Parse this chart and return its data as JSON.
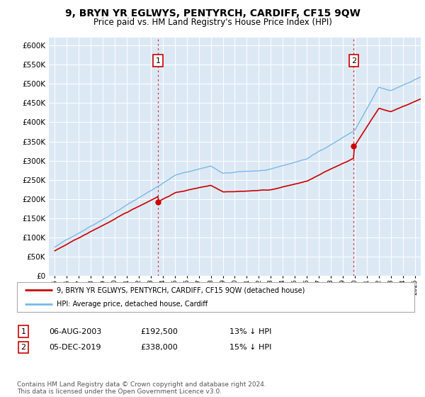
{
  "title": "9, BRYN YR EGLWYS, PENTYRCH, CARDIFF, CF15 9QW",
  "subtitle": "Price paid vs. HM Land Registry's House Price Index (HPI)",
  "background_color": "#dce9f5",
  "plot_bg_color": "#dce9f5",
  "hpi_color": "#7ab8e8",
  "price_color": "#cc0000",
  "sale1_year": 2003.6,
  "sale1_price": 192500,
  "sale1_label": "1",
  "sale2_year": 2019.92,
  "sale2_price": 338000,
  "sale2_label": "2",
  "legend_line1": "9, BRYN YR EGLWYS, PENTYRCH, CARDIFF, CF15 9QW (detached house)",
  "legend_line2": "HPI: Average price, detached house, Cardiff",
  "table_row1": [
    "1",
    "06-AUG-2003",
    "£192,500",
    "13% ↓ HPI"
  ],
  "table_row2": [
    "2",
    "05-DEC-2019",
    "£338,000",
    "15% ↓ HPI"
  ],
  "footnote": "Contains HM Land Registry data © Crown copyright and database right 2024.\nThis data is licensed under the Open Government Licence v3.0.",
  "xlim_start": 1994.5,
  "xlim_end": 2025.5,
  "ylim": [
    0,
    620000
  ],
  "yticks": [
    0,
    50000,
    100000,
    150000,
    200000,
    250000,
    300000,
    350000,
    400000,
    450000,
    500000,
    550000,
    600000
  ]
}
